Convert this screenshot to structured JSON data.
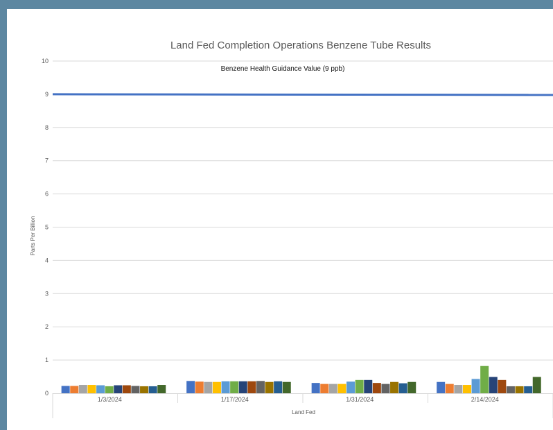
{
  "chart_data": {
    "type": "bar",
    "title": "Land Fed Completion Operations Benzene Tube Results",
    "xlabel": "Land Fed",
    "ylabel": "Parts Per Billion",
    "ylim": [
      0,
      10
    ],
    "yticks": [
      "0",
      "1",
      "2",
      "3",
      "4",
      "5",
      "6",
      "7",
      "8",
      "9",
      "10"
    ],
    "categories": [
      "1/3/2024",
      "1/17/2024",
      "1/31/2024",
      "2/14/2024"
    ],
    "reference_line": {
      "value": 9,
      "label": "Benzene Health Guidance Value (9 ppb)",
      "color": "#4472c4"
    },
    "grid": true,
    "legend": "none",
    "series": [
      {
        "color": "#4472c4",
        "values": [
          0.22,
          0.37,
          0.31,
          0.34
        ]
      },
      {
        "color": "#ed7d31",
        "values": [
          0.22,
          0.35,
          0.28,
          0.28
        ]
      },
      {
        "color": "#a5a5a5",
        "values": [
          0.25,
          0.34,
          0.28,
          0.25
        ]
      },
      {
        "color": "#ffc000",
        "values": [
          0.25,
          0.34,
          0.28,
          0.25
        ]
      },
      {
        "color": "#5b9bd5",
        "values": [
          0.24,
          0.36,
          0.35,
          0.43
        ]
      },
      {
        "color": "#70ad47",
        "values": [
          0.21,
          0.36,
          0.4,
          0.82
        ]
      },
      {
        "color": "#264478",
        "values": [
          0.24,
          0.36,
          0.4,
          0.49
        ]
      },
      {
        "color": "#9e480e",
        "values": [
          0.24,
          0.36,
          0.31,
          0.4
        ]
      },
      {
        "color": "#636363",
        "values": [
          0.22,
          0.37,
          0.28,
          0.21
        ]
      },
      {
        "color": "#997300",
        "values": [
          0.21,
          0.34,
          0.34,
          0.21
        ]
      },
      {
        "color": "#255e91",
        "values": [
          0.21,
          0.36,
          0.3,
          0.21
        ]
      },
      {
        "color": "#43682b",
        "values": [
          0.25,
          0.34,
          0.34,
          0.49
        ]
      }
    ]
  }
}
